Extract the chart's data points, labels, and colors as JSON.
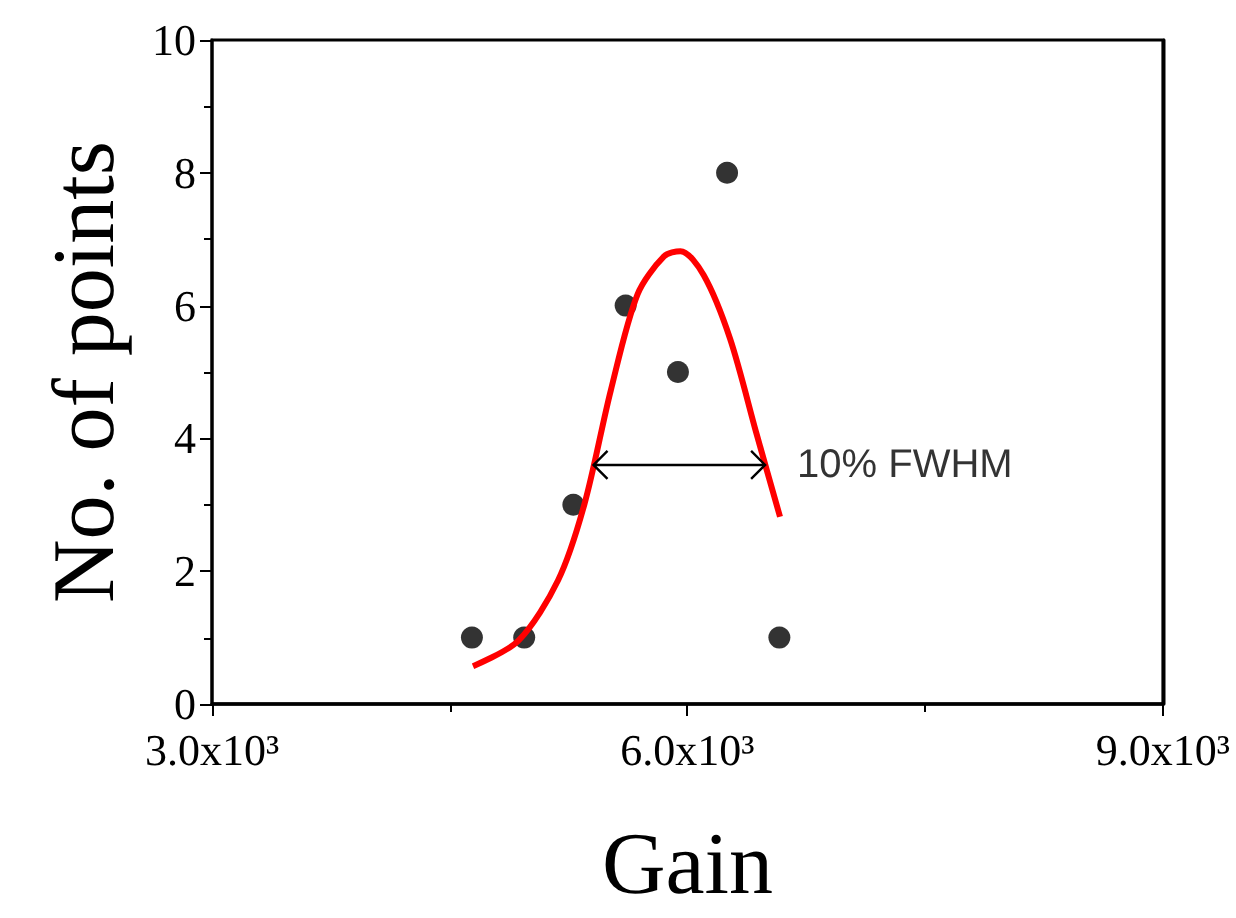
{
  "chart_data": {
    "type": "scatter",
    "xlabel": "Gain",
    "ylabel": "No. of points",
    "xlim": [
      3000,
      9000
    ],
    "xticks": [
      {
        "value": 3000,
        "label": "3.0x10³"
      },
      {
        "value": 6000,
        "label": "6.0x10³"
      },
      {
        "value": 9000,
        "label": "9.0x10³"
      }
    ],
    "ylim": [
      0,
      10
    ],
    "yticks": [
      0,
      2,
      4,
      6,
      8,
      10
    ],
    "marker": "circle",
    "grid": false,
    "series": [
      {
        "color": "#000000",
        "x": [
          4640,
          4970,
          5280,
          5610,
          5940,
          6250,
          6580
        ],
        "values": [
          1,
          1,
          3,
          6,
          5,
          8,
          1
        ]
      },
      {
        "type": "line",
        "color": "#ff0000",
        "marker": "none",
        "x": [
          4647,
          4932,
          5183,
          5350,
          5517,
          5685,
          5852,
          5956,
          6102,
          6269,
          6437,
          6584
        ],
        "values": [
          0.57,
          0.95,
          1.86,
          3.01,
          4.73,
          6.17,
          6.74,
          6.82,
          6.46,
          5.5,
          4.06,
          2.82
        ]
      }
    ],
    "annotations": [
      {
        "text": "10% FWHM",
        "x": 6490,
        "y": 3.6
      }
    ]
  }
}
